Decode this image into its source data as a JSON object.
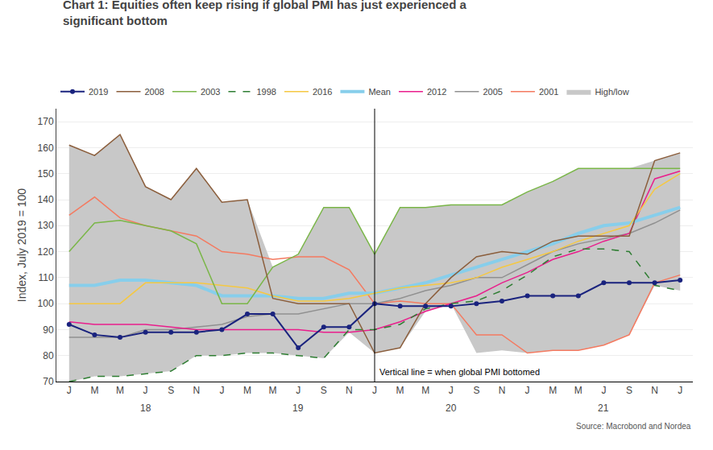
{
  "chart_data": {
    "type": "line",
    "title": "Chart 1: Equities often keep rising if global PMI has just experienced a\nsignificant bottom",
    "ylabel": "Index, July 2019 = 100",
    "source": "Source: Macrobond and Nordea",
    "categories": [
      "J",
      "M",
      "M",
      "J",
      "S",
      "N",
      "J",
      "M",
      "M",
      "J",
      "S",
      "N",
      "J",
      "M",
      "M",
      "J",
      "S",
      "N",
      "J",
      "M",
      "M",
      "J",
      "S",
      "N",
      "J"
    ],
    "year_labels": [
      {
        "label": "18",
        "x": 3
      },
      {
        "label": "19",
        "x": 9
      },
      {
        "label": "20",
        "x": 15
      },
      {
        "label": "21",
        "x": 21
      }
    ],
    "vline": {
      "x": 12,
      "label": "Vertical line = when global PMI bottomed"
    },
    "ylim": [
      70,
      175
    ],
    "yticks": [
      70,
      80,
      90,
      100,
      110,
      120,
      130,
      140,
      150,
      160,
      170
    ],
    "grid": "y",
    "legend": "top",
    "series": [
      {
        "name": "High/low",
        "type": "band",
        "color": "#c8c8c8",
        "low": [
          70,
          72,
          72,
          73,
          74,
          80,
          80,
          81,
          81,
          80,
          79,
          89,
          81,
          83,
          97,
          100,
          81,
          82,
          81,
          82,
          82,
          84,
          88,
          107,
          105
        ],
        "high": [
          161,
          157,
          165,
          145,
          140,
          152,
          139,
          140,
          114,
          119,
          137,
          137,
          119,
          137,
          137,
          138,
          138,
          138,
          143,
          147,
          152,
          152,
          152,
          155,
          158
        ]
      },
      {
        "name": "2001",
        "color": "#f47a60",
        "values": [
          134,
          141,
          133,
          130,
          128,
          126,
          120,
          119,
          117,
          118,
          118,
          113,
          100,
          101,
          100,
          100,
          88,
          88,
          81,
          82,
          82,
          84,
          88,
          108,
          111
        ]
      },
      {
        "name": "2005",
        "color": "#909090",
        "values": [
          87,
          87,
          87,
          90,
          90,
          91,
          92,
          95,
          96,
          96,
          98,
          100,
          100,
          102,
          105,
          107,
          110,
          110,
          115,
          120,
          123,
          125,
          127,
          131,
          136
        ]
      },
      {
        "name": "2012",
        "color": "#e91e8c",
        "values": [
          93,
          92,
          92,
          92,
          91,
          90,
          90,
          90,
          90,
          90,
          89,
          89,
          90,
          93,
          97,
          100,
          103,
          108,
          112,
          117,
          120,
          124,
          127,
          148,
          151
        ]
      },
      {
        "name": "Mean",
        "color": "#87ceeb",
        "line_style": "thick",
        "values": [
          107,
          107,
          109,
          109,
          108,
          107,
          103,
          103,
          103,
          102,
          102,
          104,
          104,
          106,
          108,
          111,
          114,
          117,
          120,
          123,
          127,
          130,
          131,
          134,
          137
        ]
      },
      {
        "name": "2016",
        "color": "#f5c842",
        "values": [
          100,
          100,
          100,
          108,
          108,
          108,
          107,
          106,
          103,
          101,
          101,
          102,
          104,
          106,
          107,
          108,
          110,
          114,
          117,
          120,
          124,
          127,
          130,
          144,
          150
        ]
      },
      {
        "name": "1998",
        "color": "#2e7d32",
        "line_style": "dashed",
        "values": [
          70,
          72,
          72,
          73,
          74,
          80,
          80,
          81,
          81,
          80,
          79,
          90,
          90,
          92,
          98,
          100,
          101,
          105,
          111,
          118,
          121,
          121,
          120,
          107,
          105
        ]
      },
      {
        "name": "2003",
        "color": "#7ab648",
        "values": [
          120,
          131,
          132,
          130,
          128,
          123,
          100,
          100,
          114,
          119,
          137,
          137,
          119,
          137,
          137,
          138,
          138,
          138,
          143,
          147,
          152,
          152,
          152,
          152,
          152
        ]
      },
      {
        "name": "2008",
        "color": "#8b5e3c",
        "values": [
          161,
          157,
          165,
          145,
          140,
          152,
          139,
          140,
          102,
          100,
          100,
          100,
          81,
          83,
          100,
          110,
          118,
          120,
          119,
          124,
          126,
          126,
          126,
          155,
          158
        ]
      },
      {
        "name": "2019",
        "color": "#1a237e",
        "marker": "circle",
        "values": [
          92,
          88,
          87,
          89,
          89,
          89,
          90,
          96,
          96,
          83,
          91,
          91,
          100,
          99,
          99,
          99,
          100,
          101,
          103,
          103,
          103,
          108,
          108,
          108,
          109
        ]
      }
    ]
  }
}
